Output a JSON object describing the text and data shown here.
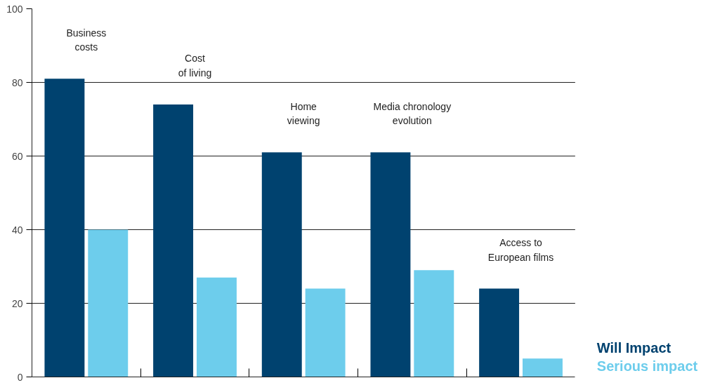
{
  "chart_data": {
    "type": "bar",
    "categories": [
      "Business\ncosts",
      "Cost\nof living",
      "Home\nviewing",
      "Media chronology\nevolution",
      "Access to\nEuropean films"
    ],
    "series": [
      {
        "name": "Will Impact",
        "color": "#00426f",
        "values": [
          81,
          74,
          61,
          61,
          24
        ]
      },
      {
        "name": "Serious impact",
        "color": "#6dcdec",
        "values": [
          40,
          27,
          24,
          29,
          5
        ]
      }
    ],
    "ylim": [
      0,
      100
    ],
    "yticks": [
      0,
      20,
      40,
      60,
      80,
      100
    ],
    "grid": "y"
  }
}
